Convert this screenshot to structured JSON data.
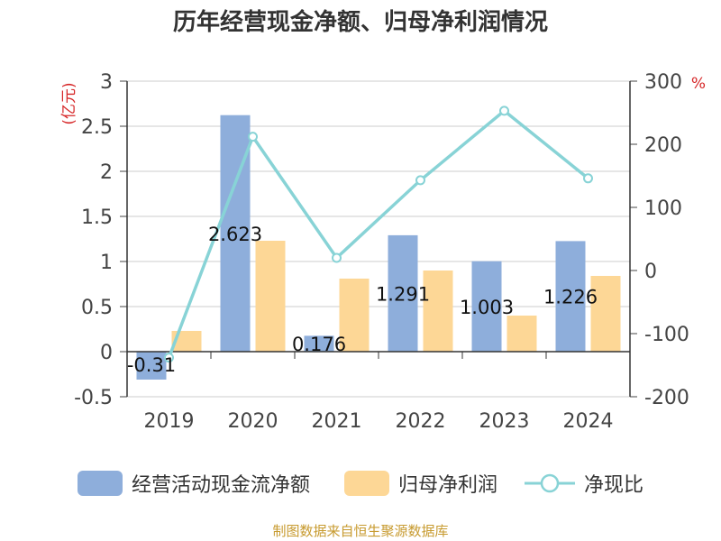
{
  "chart_data": {
    "type": "bar",
    "title": "历年经营现金净额、归母净利润情况",
    "categories": [
      "2019",
      "2020",
      "2021",
      "2022",
      "2023",
      "2024"
    ],
    "y_left": {
      "unit_label": "(亿元)",
      "min": -0.5,
      "max": 3,
      "ticks": [
        "3",
        "2.5",
        "2",
        "1.5",
        "1",
        "0.5",
        "0",
        "-0.5"
      ]
    },
    "y_right": {
      "unit_label": "%",
      "min": -200,
      "max": 300,
      "ticks": [
        "300",
        "200",
        "100",
        "0",
        "-100",
        "-200"
      ]
    },
    "series": [
      {
        "name": "经营活动现金流净额",
        "type": "bar",
        "axis": "left",
        "color": "#8eaedb",
        "values": [
          -0.31,
          2.623,
          0.176,
          1.291,
          1.003,
          1.226
        ],
        "labels": [
          "-0.31",
          "2.623",
          "0.176",
          "1.291",
          "1.003",
          "1.226"
        ]
      },
      {
        "name": "归母净利润",
        "type": "bar",
        "axis": "left",
        "color": "#fdd796",
        "values": [
          0.23,
          1.23,
          0.81,
          0.9,
          0.4,
          0.84
        ]
      },
      {
        "name": "净现比",
        "type": "line",
        "axis": "right",
        "color": "#88d3d6",
        "values": [
          -138,
          212,
          20,
          143,
          253,
          146
        ]
      }
    ],
    "grid": true,
    "legend_position": "bottom"
  },
  "source": {
    "text": "制图数据来自恒生聚源数据库",
    "color": "#c79a2e"
  }
}
